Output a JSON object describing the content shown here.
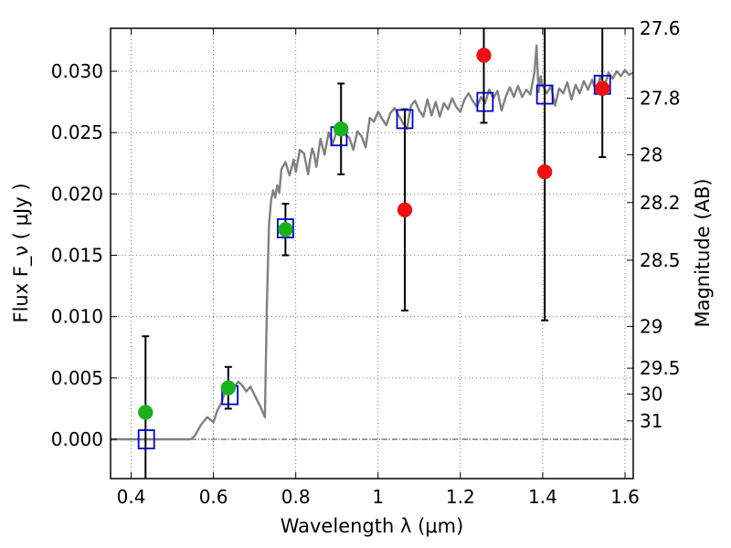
{
  "chart_data": {
    "type": "scatter",
    "title": "",
    "xlabel": "Wavelength  λ (μm)",
    "ylabel": "Flux  F_ν  ( μJy )",
    "y2label": "Magnitude (AB)",
    "xlim": [
      0.35,
      1.62
    ],
    "ylim": [
      -0.0032,
      0.0335
    ],
    "x_ticks": [
      {
        "value": 0.4,
        "label": "0.4"
      },
      {
        "value": 0.6,
        "label": "0.6"
      },
      {
        "value": 0.8,
        "label": "0.8"
      },
      {
        "value": 1.0,
        "label": "1"
      },
      {
        "value": 1.2,
        "label": "1.2"
      },
      {
        "value": 1.4,
        "label": "1.4"
      },
      {
        "value": 1.6,
        "label": "1.6"
      }
    ],
    "y_ticks": [
      {
        "value": 0.0,
        "label": "0.000"
      },
      {
        "value": 0.005,
        "label": "0.005"
      },
      {
        "value": 0.01,
        "label": "0.010"
      },
      {
        "value": 0.015,
        "label": "0.015"
      },
      {
        "value": 0.02,
        "label": "0.020"
      },
      {
        "value": 0.025,
        "label": "0.025"
      },
      {
        "value": 0.03,
        "label": "0.030"
      }
    ],
    "y2_ticks": [
      {
        "flux": 0.0335,
        "label": "27.6"
      },
      {
        "flux": 0.0278,
        "label": "27.8"
      },
      {
        "flux": 0.0232,
        "label": "28"
      },
      {
        "flux": 0.0193,
        "label": "28.2"
      },
      {
        "flux": 0.0146,
        "label": "28.5"
      },
      {
        "flux": 0.0092,
        "label": "29"
      },
      {
        "flux": 0.0058,
        "label": "29.5"
      },
      {
        "flux": 0.0037,
        "label": "30"
      },
      {
        "flux": 0.0015,
        "label": "31"
      }
    ],
    "grid": true,
    "zero_line": 0.0,
    "colors": {
      "spectrum": "#808080",
      "model": "#0000cc",
      "detected": "#1ab21a",
      "undetected": "#ee1111",
      "errorbar": "#000000"
    },
    "spectrum": {
      "x": [
        0.35,
        0.4,
        0.45,
        0.5,
        0.545,
        0.555,
        0.57,
        0.585,
        0.6,
        0.61,
        0.62,
        0.63,
        0.64,
        0.65,
        0.66,
        0.67,
        0.68,
        0.69,
        0.7,
        0.715,
        0.725,
        0.73,
        0.735,
        0.74,
        0.745,
        0.75,
        0.755,
        0.76,
        0.765,
        0.775,
        0.785,
        0.795,
        0.8,
        0.81,
        0.82,
        0.83,
        0.835,
        0.84,
        0.845,
        0.85,
        0.86,
        0.87,
        0.88,
        0.89,
        0.9,
        0.91,
        0.92,
        0.93,
        0.94,
        0.95,
        0.96,
        0.97,
        0.98,
        0.99,
        1.0,
        1.01,
        1.02,
        1.03,
        1.04,
        1.05,
        1.06,
        1.07,
        1.08,
        1.09,
        1.1,
        1.11,
        1.12,
        1.13,
        1.14,
        1.15,
        1.16,
        1.17,
        1.18,
        1.19,
        1.2,
        1.21,
        1.22,
        1.23,
        1.24,
        1.25,
        1.26,
        1.27,
        1.28,
        1.29,
        1.3,
        1.31,
        1.32,
        1.33,
        1.34,
        1.35,
        1.36,
        1.37,
        1.38,
        1.385,
        1.39,
        1.395,
        1.4,
        1.41,
        1.42,
        1.43,
        1.44,
        1.45,
        1.46,
        1.47,
        1.48,
        1.49,
        1.5,
        1.51,
        1.52,
        1.53,
        1.54,
        1.55,
        1.56,
        1.57,
        1.58,
        1.59,
        1.6,
        1.61,
        1.62
      ],
      "y": [
        0.0,
        0.0,
        0.0,
        0.0,
        0.0,
        0.0003,
        0.0012,
        0.0018,
        0.0014,
        0.0024,
        0.003,
        0.0041,
        0.0047,
        0.0042,
        0.0047,
        0.0044,
        0.0039,
        0.0043,
        0.0036,
        0.0026,
        0.0018,
        0.011,
        0.0175,
        0.0195,
        0.0203,
        0.0197,
        0.0207,
        0.0201,
        0.022,
        0.0226,
        0.0215,
        0.0228,
        0.0218,
        0.0236,
        0.0233,
        0.0216,
        0.0228,
        0.0237,
        0.0232,
        0.0222,
        0.0245,
        0.0232,
        0.025,
        0.0241,
        0.0252,
        0.0258,
        0.0248,
        0.0246,
        0.0236,
        0.0251,
        0.0247,
        0.0238,
        0.0262,
        0.0259,
        0.0267,
        0.0261,
        0.0256,
        0.0266,
        0.027,
        0.0264,
        0.0258,
        0.0253,
        0.0272,
        0.0276,
        0.0268,
        0.0263,
        0.0277,
        0.0264,
        0.0275,
        0.0263,
        0.0274,
        0.0269,
        0.0278,
        0.0271,
        0.0267,
        0.0277,
        0.0282,
        0.0276,
        0.0271,
        0.0279,
        0.0274,
        0.0285,
        0.0278,
        0.0284,
        0.0268,
        0.0279,
        0.0287,
        0.0279,
        0.0288,
        0.0279,
        0.0285,
        0.0281,
        0.0299,
        0.0321,
        0.0283,
        0.0296,
        0.0288,
        0.0282,
        0.0288,
        0.0272,
        0.0286,
        0.0282,
        0.0291,
        0.0277,
        0.0289,
        0.0282,
        0.0292,
        0.0285,
        0.0293,
        0.0283,
        0.0296,
        0.0287,
        0.0299,
        0.0294,
        0.03,
        0.0296,
        0.0301,
        0.0297,
        0.0299
      ]
    },
    "series": [
      {
        "marker": "square",
        "points": [
          {
            "x": 0.437,
            "y": 0.0
          },
          {
            "x": 0.64,
            "y": 0.0036
          },
          {
            "x": 0.775,
            "y": 0.0172
          },
          {
            "x": 0.905,
            "y": 0.0247
          },
          {
            "x": 1.065,
            "y": 0.0261
          },
          {
            "x": 1.26,
            "y": 0.0275
          },
          {
            "x": 1.405,
            "y": 0.0281
          },
          {
            "x": 1.545,
            "y": 0.0289
          }
        ]
      },
      {
        "marker": "circle",
        "points": [
          {
            "x": 0.435,
            "y": 0.0022,
            "err": 0.0062,
            "color": "detected"
          },
          {
            "x": 0.636,
            "y": 0.0042,
            "err": 0.0017,
            "color": "detected"
          },
          {
            "x": 0.775,
            "y": 0.0171,
            "err": 0.0021,
            "color": "detected"
          },
          {
            "x": 0.91,
            "y": 0.0253,
            "err": 0.0037,
            "color": "detected"
          },
          {
            "x": 1.065,
            "y": 0.0187,
            "err": 0.0082,
            "color": "undetected"
          },
          {
            "x": 1.257,
            "y": 0.0313,
            "err": 0.0055,
            "color": "undetected"
          },
          {
            "x": 1.405,
            "y": 0.0218,
            "err": 0.0121,
            "color": "undetected"
          },
          {
            "x": 1.545,
            "y": 0.0286,
            "err": 0.0056,
            "color": "undetected"
          }
        ]
      }
    ]
  }
}
